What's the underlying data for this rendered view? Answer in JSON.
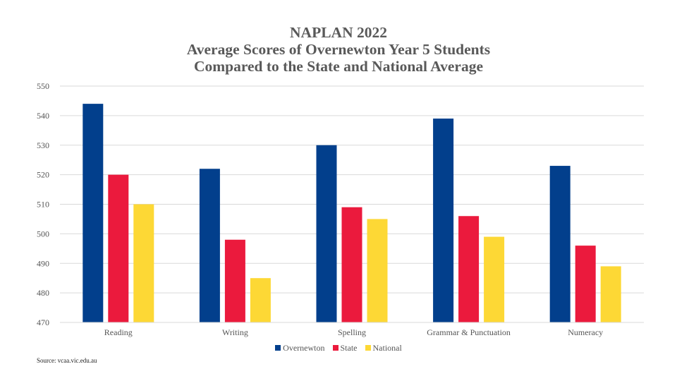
{
  "chart_data": {
    "type": "bar",
    "title": [
      "NAPLAN 2022",
      "Average Scores of Overnewton Year 5 Students",
      "Compared to the State and National Average"
    ],
    "categories": [
      "Reading",
      "Writing",
      "Spelling",
      "Grammar & Punctuation",
      "Numeracy"
    ],
    "series": [
      {
        "name": "Overnewton",
        "color": "#023F8C",
        "values": [
          544,
          522,
          530,
          539,
          523
        ]
      },
      {
        "name": "State",
        "color": "#EB1A3D",
        "values": [
          520,
          498,
          509,
          506,
          496
        ]
      },
      {
        "name": "National",
        "color": "#FDD835",
        "values": [
          510,
          485,
          505,
          499,
          489
        ]
      }
    ],
    "ylim": [
      470,
      550
    ],
    "yticks": [
      470,
      480,
      490,
      500,
      510,
      520,
      530,
      540,
      550
    ],
    "grid": true,
    "legend_position": "bottom"
  },
  "source": "Source: vcaa.vic.edu.au"
}
